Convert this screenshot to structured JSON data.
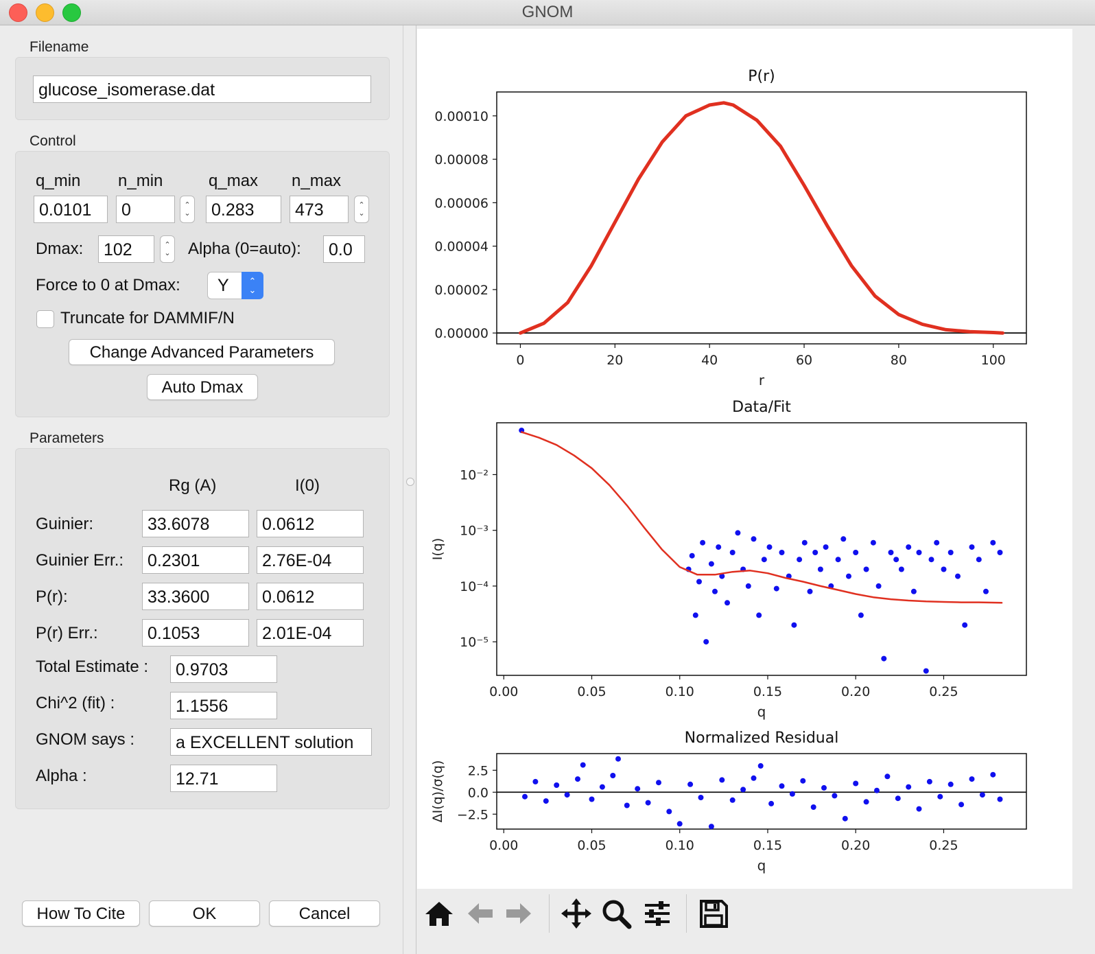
{
  "window": {
    "title": "GNOM"
  },
  "filename": {
    "section": "Filename",
    "value": "glucose_isomerase.dat"
  },
  "control": {
    "section": "Control",
    "q_min_label": "q_min",
    "n_min_label": "n_min",
    "q_max_label": "q_max",
    "n_max_label": "n_max",
    "q_min": "0.0101",
    "n_min": "0",
    "q_max": "0.283",
    "n_max": "473",
    "dmax_label": "Dmax:",
    "dmax": "102",
    "alpha_label": "Alpha (0=auto):",
    "alpha": "0.0",
    "force_label": "Force to 0 at Dmax:",
    "force_value": "Y",
    "truncate_label": "Truncate for DAMMIF/N",
    "truncate_checked": false,
    "advanced_button": "Change Advanced Parameters",
    "auto_dmax_button": "Auto Dmax"
  },
  "parameters": {
    "section": "Parameters",
    "col_rg": "Rg (A)",
    "col_i0": "I(0)",
    "rows": [
      {
        "label": "Guinier:",
        "rg": "33.6078",
        "i0": "0.0612"
      },
      {
        "label": "Guinier Err.:",
        "rg": "0.2301",
        "i0": "2.76E-04"
      },
      {
        "label": "P(r):",
        "rg": "33.3600",
        "i0": "0.0612"
      },
      {
        "label": "P(r) Err.:",
        "rg": "0.1053",
        "i0": "2.01E-04"
      }
    ],
    "total_label": "Total Estimate :",
    "total": "0.9703",
    "chi_label": "Chi^2 (fit) :",
    "chi": "1.1556",
    "says_label": "GNOM says :",
    "says": "a EXCELLENT solution",
    "alpha_label": "Alpha :",
    "alpha": "12.71"
  },
  "footer": {
    "cite": "How To Cite",
    "ok": "OK",
    "cancel": "Cancel"
  },
  "toolbar": {
    "icons": [
      "home-icon",
      "back-arrow-icon",
      "forward-arrow-icon",
      "pan-icon",
      "zoom-icon",
      "configure-subplots-icon",
      "save-icon"
    ]
  },
  "colors": {
    "data": "#1010ee",
    "fit": "#e03020",
    "select_accent": "#3b82f6"
  },
  "chart_data": [
    {
      "type": "line",
      "title": "P(r)",
      "xlabel": "r",
      "ylabel": "",
      "xlim": [
        -5,
        107
      ],
      "ylim": [
        -5e-06,
        0.000111
      ],
      "xticks": [
        0,
        20,
        40,
        60,
        80,
        100
      ],
      "xtick_labels": [
        "0",
        "20",
        "40",
        "60",
        "80",
        "100"
      ],
      "yticks": [
        0,
        2e-05,
        4e-05,
        6e-05,
        8e-05,
        0.0001
      ],
      "ytick_labels": [
        "0.00000",
        "0.00002",
        "0.00004",
        "0.00006",
        "0.00008",
        "0.00010"
      ],
      "series": [
        {
          "color": "#e03020",
          "x": [
            0,
            5,
            10,
            15,
            20,
            25,
            30,
            35,
            40,
            43,
            45,
            50,
            55,
            60,
            65,
            70,
            75,
            80,
            85,
            90,
            95,
            100,
            102
          ],
          "y": [
            0,
            4.5e-06,
            1.4e-05,
            3.1e-05,
            5.1e-05,
            7.1e-05,
            8.8e-05,
            0.0001,
            0.000105,
            0.000106,
            0.000105,
            9.8e-05,
            8.6e-05,
            6.8e-05,
            4.9e-05,
            3.1e-05,
            1.7e-05,
            8.5e-06,
            4e-06,
            1.5e-06,
            6e-07,
            2e-07,
            0
          ]
        }
      ],
      "hline": 0
    },
    {
      "type": "scatter",
      "title": "Data/Fit",
      "xlabel": "q",
      "ylabel": "I(q)",
      "yscale": "log",
      "xlim": [
        -0.004,
        0.297
      ],
      "ylim": [
        2.5e-06,
        0.085
      ],
      "xticks": [
        0,
        0.05,
        0.1,
        0.15,
        0.2,
        0.25
      ],
      "xtick_labels": [
        "0.00",
        "0.05",
        "0.10",
        "0.15",
        "0.20",
        "0.25"
      ],
      "yticks": [
        1e-05,
        0.0001,
        0.001,
        0.01
      ],
      "ytick_labels": [
        "10⁻⁵",
        "10⁻⁴",
        "10⁻³",
        "10⁻²"
      ],
      "series": [
        {
          "name": "",
          "kind": "points",
          "color": "#1010ee",
          "x": [
            0.0101,
            0.105,
            0.107,
            0.109,
            0.111,
            0.113,
            0.115,
            0.118,
            0.12,
            0.122,
            0.124,
            0.127,
            0.13,
            0.133,
            0.136,
            0.139,
            0.142,
            0.145,
            0.148,
            0.151,
            0.155,
            0.158,
            0.162,
            0.165,
            0.168,
            0.171,
            0.174,
            0.177,
            0.18,
            0.183,
            0.186,
            0.19,
            0.193,
            0.196,
            0.2,
            0.203,
            0.206,
            0.21,
            0.213,
            0.216,
            0.22,
            0.223,
            0.226,
            0.23,
            0.233,
            0.236,
            0.24,
            0.243,
            0.246,
            0.25,
            0.254,
            0.258,
            0.262,
            0.266,
            0.27,
            0.274,
            0.278,
            0.282
          ],
          "y": [
            0.062,
            0.0002,
            0.00035,
            3e-05,
            0.00012,
            0.0006,
            1e-05,
            0.00025,
            8e-05,
            0.0005,
            0.00015,
            5e-05,
            0.0004,
            0.0009,
            0.0002,
            0.0001,
            0.0007,
            3e-05,
            0.0003,
            0.0005,
            9e-05,
            0.0004,
            0.00015,
            2e-05,
            0.0003,
            0.0006,
            8e-05,
            0.0004,
            0.0002,
            0.0005,
            0.0001,
            0.0003,
            0.0007,
            0.00015,
            0.0004,
            3e-05,
            0.0002,
            0.0006,
            0.0001,
            5e-06,
            0.0004,
            0.0003,
            0.0002,
            0.0005,
            8e-05,
            0.0004,
            3e-06,
            0.0003,
            0.0006,
            0.0002,
            0.0004,
            0.00015,
            2e-05,
            0.0005,
            0.0003,
            8e-05,
            0.0006,
            0.0004
          ]
        },
        {
          "name": "",
          "kind": "line",
          "color": "#e03020",
          "x": [
            0.0101,
            0.02,
            0.03,
            0.04,
            0.05,
            0.06,
            0.07,
            0.08,
            0.09,
            0.1,
            0.11,
            0.12,
            0.13,
            0.14,
            0.15,
            0.16,
            0.17,
            0.18,
            0.19,
            0.2,
            0.21,
            0.22,
            0.23,
            0.24,
            0.25,
            0.26,
            0.27,
            0.283
          ],
          "y": [
            0.058,
            0.046,
            0.034,
            0.022,
            0.013,
            0.0065,
            0.0028,
            0.0011,
            0.00045,
            0.00022,
            0.00016,
            0.00016,
            0.00018,
            0.00019,
            0.00017,
            0.00014,
            0.00012,
            0.0001,
            8.5e-05,
            7.2e-05,
            6.3e-05,
            5.8e-05,
            5.5e-05,
            5.3e-05,
            5.2e-05,
            5.1e-05,
            5.1e-05,
            5e-05
          ]
        }
      ]
    },
    {
      "type": "scatter",
      "title": "Normalized Residual",
      "xlabel": "q",
      "ylabel": "ΔI(q)/σ(q)",
      "xlim": [
        -0.004,
        0.297
      ],
      "ylim": [
        -4.2,
        4.4
      ],
      "xticks": [
        0,
        0.05,
        0.1,
        0.15,
        0.2,
        0.25
      ],
      "xtick_labels": [
        "0.00",
        "0.05",
        "0.10",
        "0.15",
        "0.20",
        "0.25"
      ],
      "yticks": [
        -2.5,
        0,
        2.5
      ],
      "ytick_labels": [
        "−2.5",
        "0.0",
        "2.5"
      ],
      "hline": 0,
      "series": [
        {
          "name": "",
          "color": "#1010ee",
          "x": [
            0.012,
            0.018,
            0.024,
            0.03,
            0.036,
            0.042,
            0.045,
            0.05,
            0.056,
            0.062,
            0.065,
            0.07,
            0.076,
            0.082,
            0.088,
            0.094,
            0.1,
            0.106,
            0.112,
            0.118,
            0.124,
            0.13,
            0.136,
            0.142,
            0.146,
            0.152,
            0.158,
            0.164,
            0.17,
            0.176,
            0.182,
            0.188,
            0.194,
            0.2,
            0.206,
            0.212,
            0.218,
            0.224,
            0.23,
            0.236,
            0.242,
            0.248,
            0.254,
            0.26,
            0.266,
            0.272,
            0.278,
            0.282
          ],
          "y": [
            -0.5,
            1.2,
            -1.0,
            0.8,
            -0.3,
            1.5,
            3.1,
            -0.8,
            0.6,
            1.9,
            3.8,
            -1.5,
            0.4,
            -1.2,
            1.1,
            -2.2,
            -3.6,
            0.9,
            -0.6,
            -3.9,
            1.4,
            -0.9,
            0.3,
            1.6,
            3.0,
            -1.3,
            0.7,
            -0.2,
            1.3,
            -1.7,
            0.5,
            -0.4,
            -3.0,
            1.0,
            -1.1,
            0.2,
            1.8,
            -0.7,
            0.6,
            -1.9,
            1.2,
            -0.5,
            0.9,
            -1.4,
            1.5,
            -0.3,
            2.0,
            -0.8
          ]
        }
      ]
    }
  ]
}
